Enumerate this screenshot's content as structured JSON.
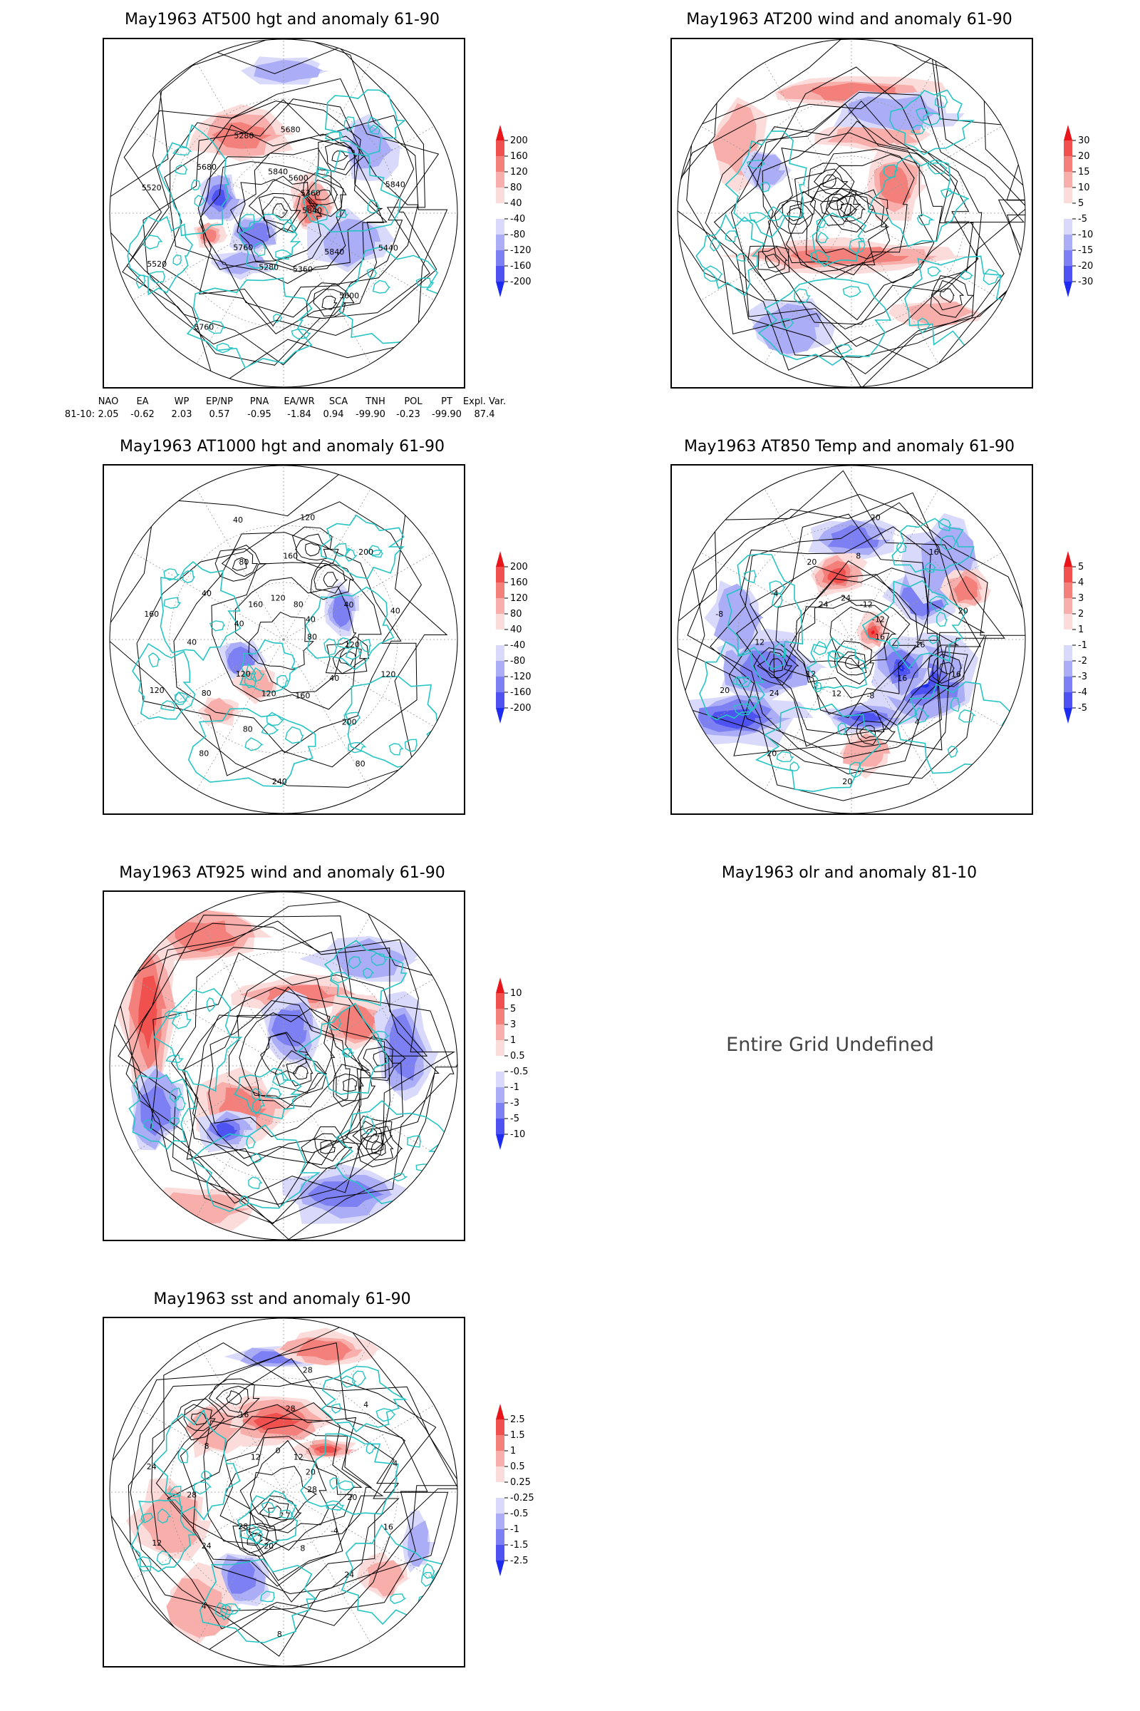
{
  "panels": [
    {
      "id": "p1",
      "title": "May1963 AT500 hgt and anomaly 61-90",
      "contour_labels": [
        "5840",
        "5760",
        "5680",
        "5600",
        "5520",
        "5360",
        "5280",
        "5280",
        "5440",
        "5520",
        "5600",
        "5360",
        "5680",
        "5840",
        "5760",
        "5840",
        "5840"
      ],
      "colorbar": [
        "200",
        "160",
        "120",
        "80",
        "40",
        "-40",
        "-80",
        "-120",
        "-160",
        "-200"
      ]
    },
    {
      "id": "p2",
      "title": "May1963 AT200 wind and anomaly 61-90",
      "contour_labels": [],
      "colorbar": [
        "30",
        "20",
        "15",
        "10",
        "5",
        "-5",
        "-10",
        "-15",
        "-20",
        "-30"
      ]
    },
    {
      "id": "p3",
      "title": "May1963 AT1000 hgt and anomaly 61-90",
      "contour_labels": [
        "80",
        "120",
        "160",
        "200",
        "160",
        "40",
        "120",
        "80",
        "120",
        "120",
        "80",
        "160",
        "40",
        "40",
        "80",
        "120",
        "40",
        "40",
        "200",
        "240",
        "160",
        "120",
        "80",
        "120",
        "80",
        "40",
        "40",
        "80",
        "40"
      ],
      "colorbar": [
        "200",
        "160",
        "120",
        "80",
        "40",
        "-40",
        "-80",
        "-120",
        "-160",
        "-200"
      ]
    },
    {
      "id": "p4",
      "title": "May1963 AT850 Temp and anomaly 61-90",
      "contour_labels": [
        "16",
        "12",
        "8",
        "4",
        "-8",
        "-12",
        "12",
        "20",
        "16",
        "20",
        "-12",
        "-8",
        "-4",
        "20",
        "20",
        "24",
        "16",
        "12",
        "16",
        "20",
        "24",
        "16",
        "24",
        "20"
      ],
      "colorbar": [
        "5",
        "4",
        "3",
        "2",
        "1",
        "-1",
        "-2",
        "-3",
        "-4",
        "-5"
      ]
    },
    {
      "id": "p5",
      "title": "May1963 AT925 wind and anomaly 61-90",
      "contour_labels": [],
      "colorbar": [
        "10",
        "5",
        "3",
        "1",
        "0.5",
        "-0.5",
        "-1",
        "-3",
        "-5",
        "-10"
      ]
    },
    {
      "id": "p6",
      "title": "May1963 olr and anomaly 81-10",
      "message": "Entire Grid Undefined"
    },
    {
      "id": "p7",
      "title": "May1963 sst and anomaly 61-90",
      "contour_labels": [
        "28",
        "28",
        "28",
        "24",
        "24",
        "20",
        "20",
        "16",
        "16",
        "12",
        "12",
        "8",
        "8",
        "4",
        "4",
        "0",
        "-4",
        "28",
        "4",
        "8",
        "12",
        "20",
        "24",
        "28"
      ],
      "colorbar": [
        "2.5",
        "1.5",
        "1",
        "0.5",
        "0.25",
        "-0.25",
        "-0.5",
        "-1",
        "-1.5",
        "-2.5"
      ]
    }
  ],
  "indices": {
    "headers": [
      "NAO",
      "EA",
      "WP",
      "EP/NP",
      "PNA",
      "EA/WR",
      "SCA",
      "TNH",
      "POL",
      "PT",
      "Expl. Var."
    ],
    "row_label": "81-10:",
    "values": [
      "2.05",
      "-0.62",
      "2.03",
      "0.57",
      "-0.95",
      "-1.84",
      "0.94",
      "-99.90",
      "-0.23",
      "-99.90",
      "87.4"
    ]
  },
  "colors": {
    "positive": "#e8151b",
    "negative": "#1d2bf0",
    "coast": "#26c4c4",
    "contour": "#000000"
  }
}
